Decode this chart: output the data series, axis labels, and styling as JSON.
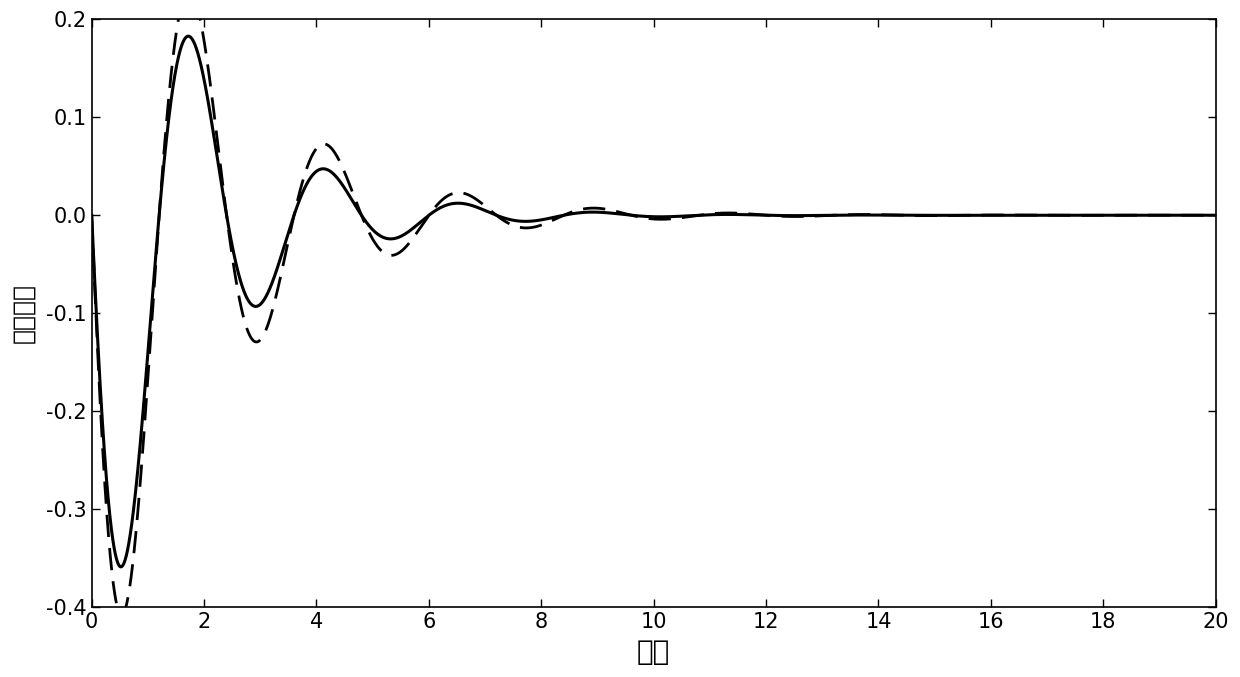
{
  "title": "",
  "xlabel": "时间",
  "ylabel": "负载摆角",
  "xlim": [
    0,
    20
  ],
  "ylim": [
    -0.4,
    0.2
  ],
  "xticks": [
    0,
    2,
    4,
    6,
    8,
    10,
    12,
    14,
    16,
    18,
    20
  ],
  "yticks": [
    -0.4,
    -0.3,
    -0.2,
    -0.1,
    0.0,
    0.1,
    0.2
  ],
  "background_color": "#ffffff",
  "line_color": "#000000",
  "linewidth_solid": 2.2,
  "linewidth_dashed": 2.0,
  "xlabel_fontsize": 20,
  "ylabel_fontsize": 18,
  "tick_fontsize": 15
}
